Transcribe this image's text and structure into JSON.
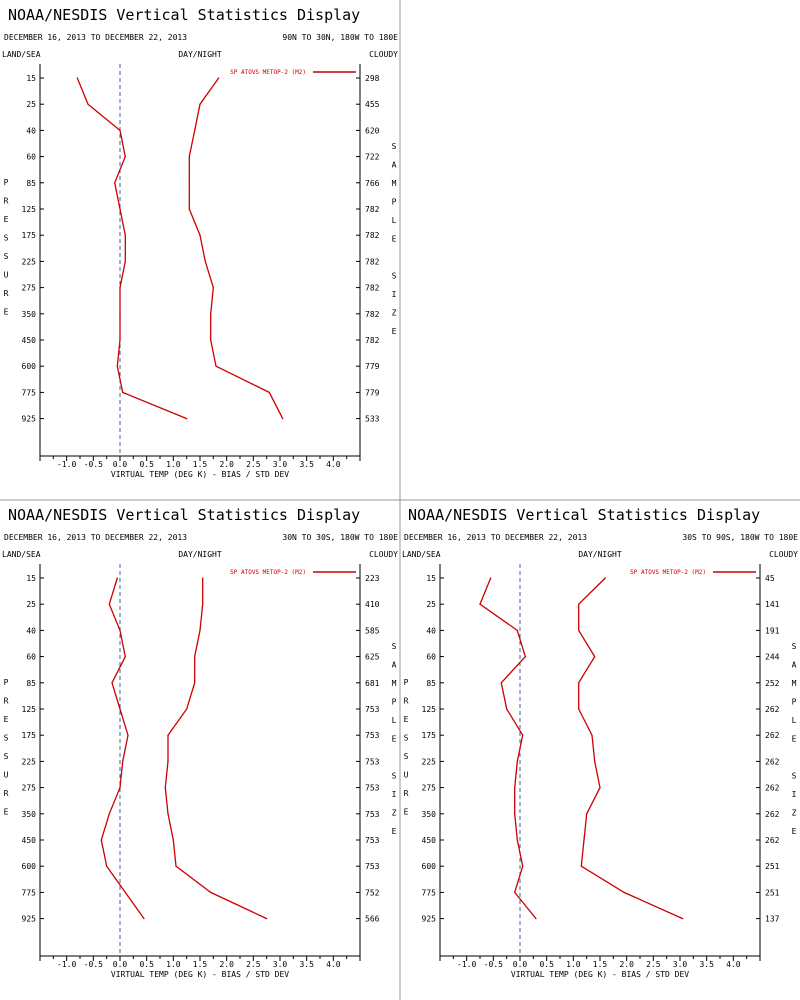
{
  "display_title": "NOAA/NESDIS Vertical Statistics Display",
  "colors": {
    "series": "#cc0000",
    "axis": "#000000",
    "zero_line": "#3a5fa0",
    "divider": "#999999"
  },
  "chart_data": [
    {
      "type": "line",
      "title": "NOAA/NESDIS Vertical Statistics Display",
      "date_range": "DECEMBER 16, 2013 TO DECEMBER 22, 2013",
      "region": "90N TO 30N, 180W TO 180E",
      "left_header": "LAND/SEA",
      "center_header": "DAY/NIGHT",
      "right_header": "CLOUDY",
      "ylabel": "PRESSURE",
      "y2label": "SAMPLE SIZE",
      "xlabel": "VIRTUAL TEMP (DEG K) - BIAS / STD DEV",
      "legend": "SP ATOVS METOP-2 (M2)",
      "xlim": [
        -1.5,
        4.5
      ],
      "x_ticks": [
        "-1.0",
        "-0.5",
        "0.0",
        "0.5",
        "1.0",
        "1.5",
        "2.0",
        "2.5",
        "3.0",
        "3.5",
        "4.0"
      ],
      "pressure_levels": [
        "15",
        "25",
        "40",
        "60",
        "85",
        "125",
        "175",
        "225",
        "275",
        "350",
        "450",
        "600",
        "775",
        "925"
      ],
      "sample_size": [
        "298",
        "455",
        "620",
        "722",
        "766",
        "782",
        "782",
        "782",
        "782",
        "782",
        "782",
        "779",
        "779",
        "533"
      ],
      "series": [
        {
          "name": "bias",
          "values": [
            -0.8,
            -0.6,
            0.0,
            0.1,
            -0.1,
            0.0,
            0.1,
            0.1,
            0.0,
            0.0,
            0.0,
            -0.05,
            0.05,
            1.25
          ]
        },
        {
          "name": "std_dev",
          "values": [
            1.85,
            1.5,
            1.4,
            1.3,
            1.3,
            1.3,
            1.5,
            1.6,
            1.75,
            1.7,
            1.7,
            1.8,
            2.8,
            3.05
          ]
        }
      ]
    },
    {
      "type": "line",
      "title": "NOAA/NESDIS Vertical Statistics Display",
      "date_range": "DECEMBER 16, 2013 TO DECEMBER 22, 2013",
      "region": "30N TO 30S, 180W TO 180E",
      "left_header": "LAND/SEA",
      "center_header": "DAY/NIGHT",
      "right_header": "CLOUDY",
      "ylabel": "PRESSURE",
      "y2label": "SAMPLE SIZE",
      "xlabel": "VIRTUAL TEMP (DEG K) - BIAS / STD DEV",
      "legend": "SP ATOVS METOP-2 (M2)",
      "xlim": [
        -1.5,
        4.5
      ],
      "x_ticks": [
        "-1.0",
        "-0.5",
        "0.0",
        "0.5",
        "1.0",
        "1.5",
        "2.0",
        "2.5",
        "3.0",
        "3.5",
        "4.0"
      ],
      "pressure_levels": [
        "15",
        "25",
        "40",
        "60",
        "85",
        "125",
        "175",
        "225",
        "275",
        "350",
        "450",
        "600",
        "775",
        "925"
      ],
      "sample_size": [
        "223",
        "410",
        "585",
        "625",
        "681",
        "753",
        "753",
        "753",
        "753",
        "753",
        "753",
        "753",
        "752",
        "566"
      ],
      "series": [
        {
          "name": "bias",
          "values": [
            -0.05,
            -0.2,
            0.0,
            0.1,
            -0.15,
            0.0,
            0.15,
            0.05,
            0.0,
            -0.2,
            -0.35,
            -0.25,
            0.1,
            0.45
          ]
        },
        {
          "name": "std_dev",
          "values": [
            1.55,
            1.55,
            1.5,
            1.4,
            1.4,
            1.25,
            0.9,
            0.9,
            0.85,
            0.9,
            1.0,
            1.05,
            1.7,
            2.75
          ]
        }
      ]
    },
    {
      "type": "line",
      "title": "NOAA/NESDIS Vertical Statistics Display",
      "date_range": "DECEMBER 16, 2013 TO DECEMBER 22, 2013",
      "region": "30S TO 90S, 180W TO 180E",
      "left_header": "LAND/SEA",
      "center_header": "DAY/NIGHT",
      "right_header": "CLOUDY",
      "ylabel": "PRESSURE",
      "y2label": "SAMPLE SIZE",
      "xlabel": "VIRTUAL TEMP (DEG K) - BIAS / STD DEV",
      "legend": "SP ATOVS METOP-2 (M2)",
      "xlim": [
        -1.5,
        4.5
      ],
      "x_ticks": [
        "-1.0",
        "-0.5",
        "0.0",
        "0.5",
        "1.0",
        "1.5",
        "2.0",
        "2.5",
        "3.0",
        "3.5",
        "4.0"
      ],
      "pressure_levels": [
        "15",
        "25",
        "40",
        "60",
        "85",
        "125",
        "175",
        "225",
        "275",
        "350",
        "450",
        "600",
        "775",
        "925"
      ],
      "sample_size": [
        "45",
        "141",
        "191",
        "244",
        "252",
        "262",
        "262",
        "262",
        "262",
        "262",
        "262",
        "251",
        "251",
        "137"
      ],
      "series": [
        {
          "name": "bias",
          "values": [
            -0.55,
            -0.75,
            -0.05,
            0.1,
            -0.35,
            -0.25,
            0.05,
            -0.05,
            -0.1,
            -0.1,
            -0.05,
            0.05,
            -0.1,
            0.3
          ]
        },
        {
          "name": "std_dev",
          "values": [
            1.6,
            1.1,
            1.1,
            1.4,
            1.1,
            1.1,
            1.35,
            1.4,
            1.5,
            1.25,
            1.2,
            1.15,
            1.95,
            3.05
          ]
        }
      ]
    }
  ]
}
